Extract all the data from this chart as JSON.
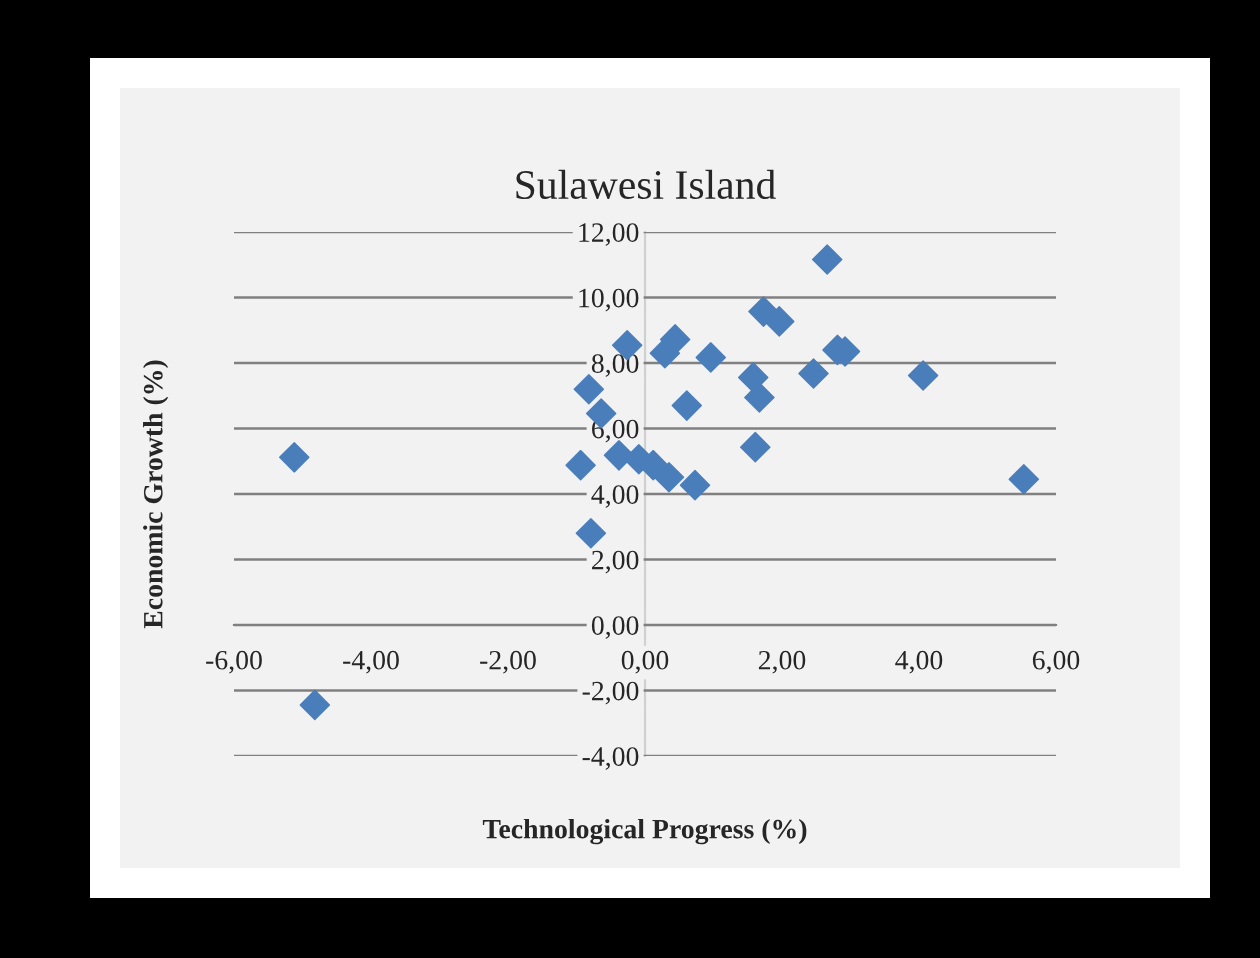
{
  "chart_data": {
    "type": "scatter",
    "title": "Sulawesi Island",
    "xlabel": "Technological Progress (%)",
    "ylabel": "Economic Growth (%)",
    "x": [
      -5.12,
      -4.82,
      -0.94,
      -0.82,
      -0.79,
      -0.64,
      -0.38,
      -0.26,
      -0.09,
      0.12,
      0.29,
      0.35,
      0.44,
      0.61,
      0.73,
      0.96,
      1.58,
      1.61,
      1.67,
      1.73,
      1.96,
      2.46,
      2.66,
      2.81,
      2.92,
      4.06,
      5.53
    ],
    "series": [
      {
        "color": "#4a7ebb",
        "values": [
          5.12,
          -2.44,
          4.88,
          7.2,
          2.8,
          6.46,
          5.18,
          8.54,
          5.06,
          4.88,
          8.3,
          4.51,
          8.72,
          6.7,
          4.27,
          8.17,
          7.56,
          5.43,
          6.95,
          9.57,
          9.27,
          7.68,
          11.16,
          8.4,
          8.35,
          7.62,
          4.45
        ]
      }
    ],
    "marker": "diamond",
    "grid": "y",
    "xlim": [
      -6,
      6
    ],
    "ylim": [
      -4,
      12
    ],
    "xticks": [
      {
        "value": -6,
        "label": "-6,00"
      },
      {
        "value": -4,
        "label": "-4,00"
      },
      {
        "value": -2,
        "label": "-2,00"
      },
      {
        "value": 0,
        "label": "0,00"
      },
      {
        "value": 2,
        "label": "2,00"
      },
      {
        "value": 4,
        "label": "4,00"
      },
      {
        "value": 6,
        "label": "6,00"
      }
    ],
    "yticks": [
      {
        "value": -4,
        "label": "-4,00"
      },
      {
        "value": -2,
        "label": "-2,00"
      },
      {
        "value": 0,
        "label": "0,00"
      },
      {
        "value": 2,
        "label": "2,00"
      },
      {
        "value": 4,
        "label": "4,00"
      },
      {
        "value": 6,
        "label": "6,00"
      },
      {
        "value": 8,
        "label": "8,00"
      },
      {
        "value": 10,
        "label": "10,00"
      },
      {
        "value": 12,
        "label": "12,00"
      }
    ]
  }
}
